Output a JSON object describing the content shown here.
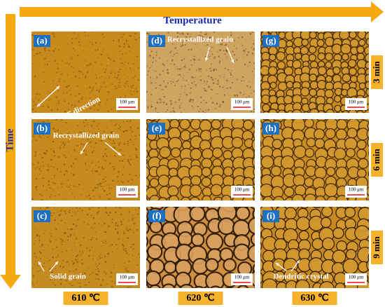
{
  "axes": {
    "x_label": "Temperature",
    "y_label": "Time"
  },
  "columns": [
    "610 ℃",
    "620 ℃",
    "630 ℃"
  ],
  "rows": [
    "3 min",
    "6 min",
    "9 min"
  ],
  "panels": [
    {
      "label": "(a)",
      "annotation": "The RF direction",
      "scale_bar": "100 μm"
    },
    {
      "label": "(b)",
      "annotation": "Recrystallized grain",
      "scale_bar": "100 μm"
    },
    {
      "label": "(c)",
      "annotation": "Solid grain",
      "scale_bar": "100 μm"
    },
    {
      "label": "(d)",
      "annotation": "Recrystallized grain",
      "scale_bar": "100 μm"
    },
    {
      "label": "(e)",
      "scale_bar": "100 μm"
    },
    {
      "label": "(f)",
      "scale_bar": "100 μm"
    },
    {
      "label": "(g)",
      "scale_bar": "100 μm"
    },
    {
      "label": "(h)",
      "scale_bar": "100 μm"
    },
    {
      "label": "(i)",
      "annotation": "Dendritic crystal",
      "scale_bar": "100 μm"
    }
  ]
}
